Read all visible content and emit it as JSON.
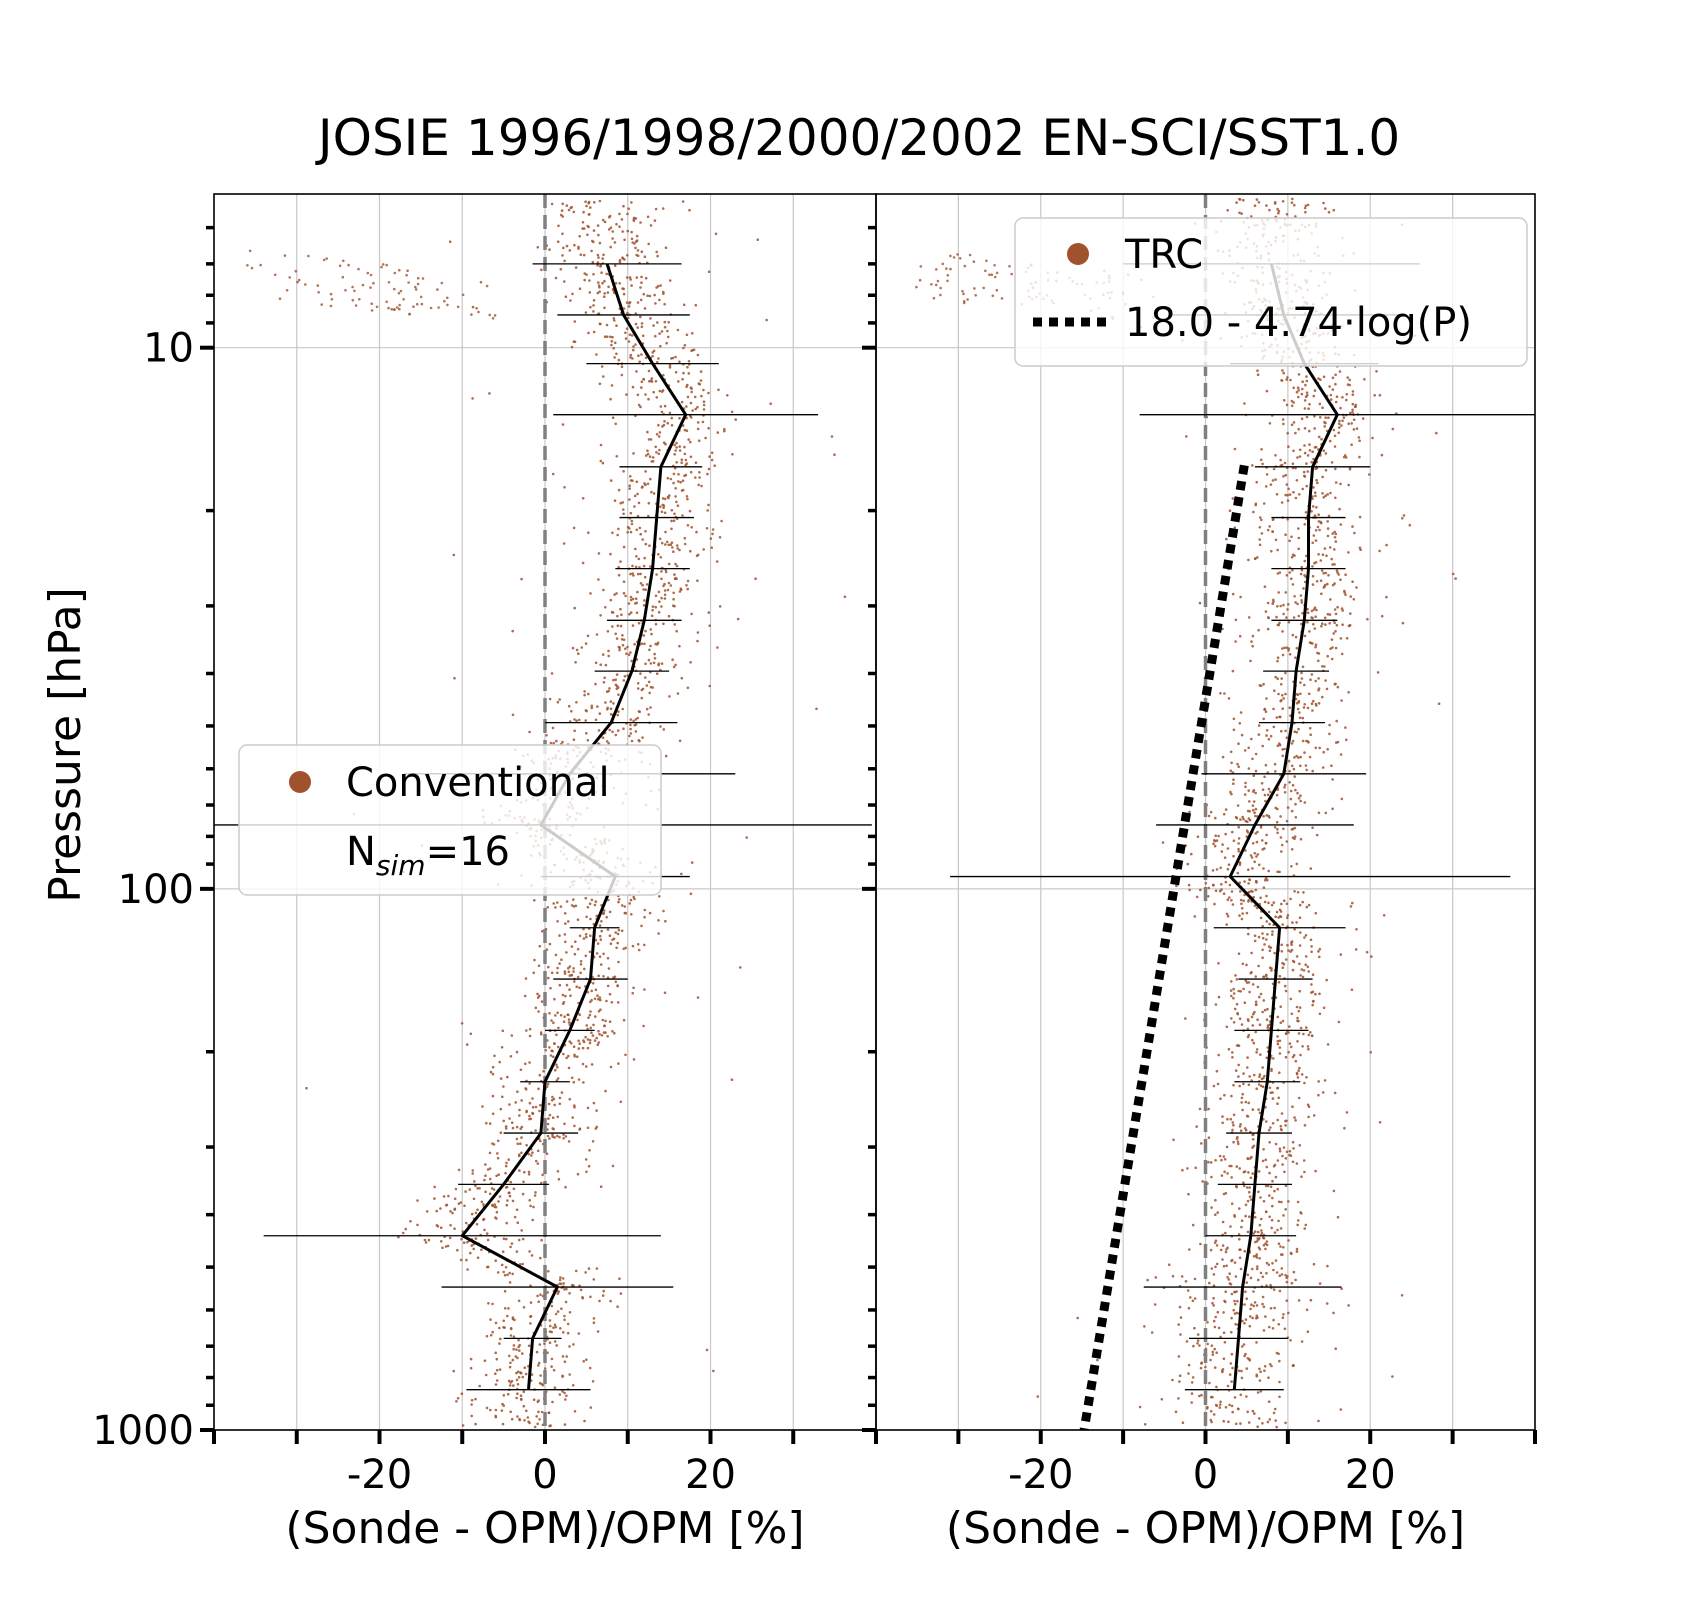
{
  "figure": {
    "title": "JOSIE 1996/1998/2000/2002 EN-SCI/SST1.0",
    "ylabel": "Pressure [hPa]"
  },
  "chart_data": [
    {
      "type": "scatter",
      "panel": "left",
      "xlabel": "(Sonde - OPM)/OPM [%]",
      "xlim": [
        -40,
        40
      ],
      "ylim": [
        1000,
        5.2
      ],
      "yscale": "log",
      "y_inverted": true,
      "x_ticks": [
        -20,
        0,
        20
      ],
      "x_tick_labels": [
        "-20",
        "0",
        "20"
      ],
      "y_ticks": [
        10,
        100,
        1000
      ],
      "y_tick_labels": [
        "10",
        "100",
        "1000"
      ],
      "grid": true,
      "reference_line_x": 0,
      "legend": {
        "location": "center-left",
        "entries": [
          {
            "type": "marker",
            "label": "Conventional"
          },
          {
            "type": "text",
            "label_main": "N",
            "label_sub": "sim",
            "label_value": "=16"
          }
        ]
      },
      "points_color": "#a0522d",
      "series": [
        {
          "name": "Conventional",
          "pressure": [
            7.0,
            8.7,
            10.7,
            13.3,
            16.6,
            20.6,
            25.6,
            31.9,
            39.6,
            49.3,
            61.3,
            76.2,
            94.9,
            118.0,
            146.8,
            182.6,
            227.2,
            282.7,
            351.7,
            437.5,
            544.3,
            677.1,
            842.3
          ],
          "median": [
            7.5,
            9.5,
            13.0,
            17.0,
            14.0,
            13.5,
            13.0,
            12.0,
            10.5,
            8.0,
            3.0,
            -0.5,
            8.5,
            6.0,
            5.5,
            3.0,
            0.0,
            -0.5,
            -5.0,
            -10.0,
            1.5,
            -1.5,
            -2.0
          ],
          "spread": [
            9.0,
            8.0,
            8.0,
            16.0,
            5.0,
            4.5,
            4.5,
            4.5,
            4.5,
            8.0,
            20.0,
            40.0,
            9.0,
            3.0,
            4.5,
            3.0,
            3.0,
            4.5,
            5.5,
            24.0,
            14.0,
            3.5,
            7.5
          ]
        }
      ]
    },
    {
      "type": "scatter",
      "panel": "right",
      "xlabel": "(Sonde - OPM)/OPM [%]",
      "xlim": [
        -40,
        40
      ],
      "ylim": [
        1000,
        5.2
      ],
      "yscale": "log",
      "y_inverted": true,
      "x_ticks": [
        -20,
        0,
        20
      ],
      "x_tick_labels": [
        "-20",
        "0",
        "20"
      ],
      "y_ticks": [
        10,
        100,
        1000
      ],
      "grid": true,
      "reference_line_x": 0,
      "legend": {
        "location": "top-right",
        "entries": [
          {
            "type": "marker",
            "label": "TRC"
          },
          {
            "type": "dotted-line",
            "label": "18.0 - 4.74·log(P)"
          }
        ]
      },
      "points_color": "#a0522d",
      "series": [
        {
          "name": "TRC",
          "pressure": [
            7.0,
            8.7,
            10.7,
            13.3,
            16.6,
            20.6,
            25.6,
            31.9,
            39.6,
            49.3,
            61.3,
            76.2,
            94.9,
            118.0,
            146.8,
            182.6,
            227.2,
            282.7,
            351.7,
            437.5,
            544.3,
            677.1,
            842.3
          ],
          "median": [
            8.0,
            9.5,
            12.0,
            16.0,
            13.0,
            12.5,
            12.5,
            12.0,
            11.0,
            10.5,
            9.5,
            6.0,
            3.0,
            9.0,
            8.5,
            8.0,
            7.5,
            6.5,
            6.0,
            5.5,
            4.5,
            4.0,
            3.5
          ],
          "spread": [
            18.0,
            14.0,
            9.0,
            24.0,
            7.0,
            4.5,
            4.5,
            4.0,
            4.0,
            4.0,
            10.0,
            12.0,
            34.0,
            8.0,
            4.5,
            4.5,
            4.0,
            4.0,
            4.5,
            5.5,
            12.0,
            6.0,
            6.0
          ]
        },
        {
          "name": "18.0 - 4.74·log(P)",
          "intercept": 18.0,
          "slope": -4.74,
          "p_range": [
            16.5,
            1000
          ]
        }
      ]
    }
  ]
}
